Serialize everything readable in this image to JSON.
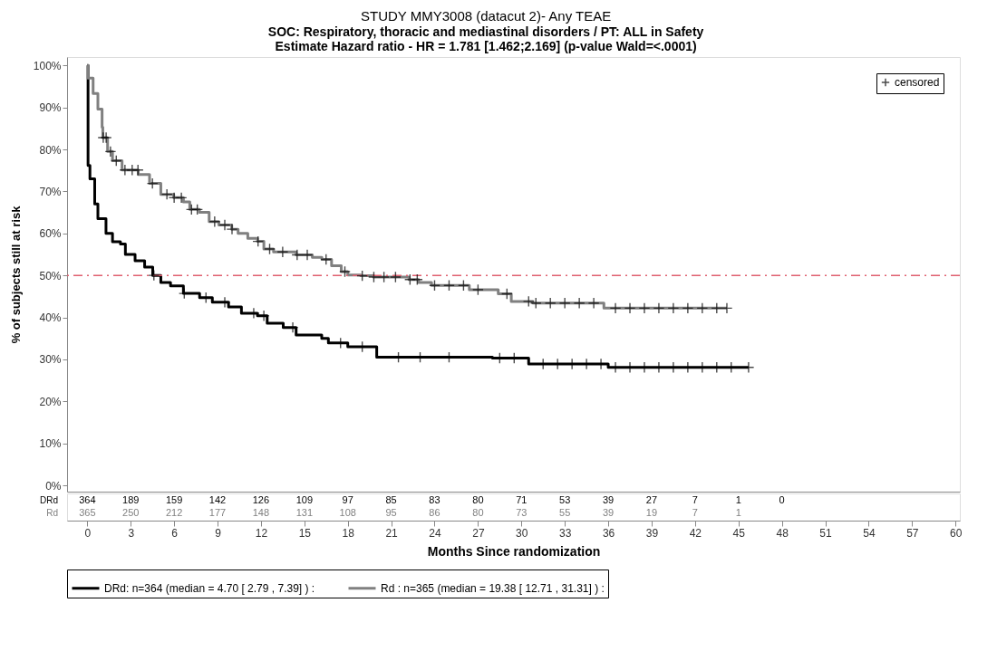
{
  "chart_data": {
    "type": "step",
    "title": "STUDY MMY3008 (datacut 2)- Any TEAE",
    "subtitle": "SOC: Respiratory, thoracic and mediastinal disorders / PT: ALL  in Safety\nEstimate Hazard ratio -  HR = 1.781 [1.462;2.169] (p-value Wald=<.0001)",
    "xlabel": "Months Since randomization",
    "ylabel": "% of subjects still at risk",
    "xlim": [
      -1.4,
      60.3
    ],
    "ylim": [
      -1.5,
      102
    ],
    "xticks": [
      0,
      3,
      6,
      9,
      12,
      15,
      18,
      21,
      24,
      27,
      30,
      33,
      36,
      39,
      42,
      45,
      48,
      51,
      54,
      57,
      60
    ],
    "yticks": [
      {
        "value": 0,
        "label": "0%"
      },
      {
        "value": 10,
        "label": "10%"
      },
      {
        "value": 20,
        "label": "20%"
      },
      {
        "value": 30,
        "label": "30%"
      },
      {
        "value": 40,
        "label": "40%"
      },
      {
        "value": 50,
        "label": "50%"
      },
      {
        "value": 60,
        "label": "60%"
      },
      {
        "value": 70,
        "label": "70%"
      },
      {
        "value": 80,
        "label": "80%"
      },
      {
        "value": 90,
        "label": "90%"
      },
      {
        "value": 100,
        "label": "100%"
      }
    ],
    "grid": false,
    "legend": "bottom",
    "series": [
      {
        "name": "DRd: n=364 (median = 4.70 [  2.79 ,  7.39]  ) :",
        "color": "#000000",
        "x": [
          0,
          0.05,
          0.18,
          0.51,
          0.73,
          1.29,
          1.74,
          2.29,
          2.63,
          3.3,
          3.96,
          4.52,
          5.08,
          5.75,
          6.64,
          7.76,
          8.64,
          9.76,
          10.65,
          11.76,
          12.43,
          13.54,
          14.43,
          16.2,
          16.66,
          18.0,
          20.0,
          28.0,
          30.5,
          36.0,
          45.7
        ],
        "values": [
          100,
          76.2,
          73,
          67,
          63.5,
          60,
          58,
          57.5,
          55,
          53.5,
          52,
          50,
          48.3,
          47.5,
          45.7,
          44.7,
          43.6,
          42.5,
          41,
          40.4,
          38.6,
          37.6,
          35.8,
          35,
          33.9,
          33,
          30.5,
          30.3,
          28.9,
          28.1,
          28.1
        ]
      },
      {
        "name": "Rd : n=365 (median = 19.38 [ 12.71 , 31.31] ) :",
        "color": "#808080",
        "x": [
          0,
          0.05,
          0.4,
          0.73,
          1.02,
          1.07,
          1.4,
          1.74,
          2.4,
          3.52,
          4.3,
          5.08,
          5.97,
          6.64,
          7.08,
          7.75,
          8.42,
          9.09,
          9.98,
          10.42,
          11.09,
          11.76,
          12.2,
          12.87,
          14.43,
          15.55,
          16.21,
          16.88,
          17.55,
          18.0,
          18.89,
          19.78,
          21.56,
          22.23,
          22.9,
          23.79,
          26.4,
          28.4,
          29.3,
          30.8,
          35.7,
          44.2
        ],
        "values": [
          100,
          97,
          93.3,
          89.6,
          85.3,
          82.8,
          79.5,
          77.3,
          75.1,
          74,
          71.9,
          69.3,
          68.5,
          67.5,
          65.7,
          65,
          62.8,
          62,
          61,
          60,
          58.8,
          58.1,
          56.3,
          55.6,
          54.9,
          54.3,
          53.8,
          52.3,
          50.9,
          50.1,
          49.9,
          49.6,
          49.6,
          49,
          48.3,
          47.6,
          46.6,
          45.6,
          43.8,
          43.4,
          42.2,
          42.2
        ]
      },
      {
        "name": "censored",
        "color": "#000000",
        "type": "scatter",
        "marker": "cross",
        "x": [
          1.1,
          1.3,
          1.6,
          2.0,
          2.6,
          3.1,
          3.5,
          4.5,
          5.5,
          6.0,
          6.5,
          7.2,
          7.6,
          8.8,
          9.5,
          10.0,
          11.8,
          12.6,
          13.5,
          14.5,
          15.2,
          16.5,
          17.8,
          19.0,
          19.8,
          20.5,
          21.3,
          22.3,
          22.8,
          24.0,
          25.0,
          26.0,
          27.0,
          29.0,
          30.5,
          31.0,
          32.0,
          33.0,
          34.0,
          35.0,
          36.5,
          37.5,
          38.5,
          39.5,
          40.5,
          41.5,
          42.5,
          43.5,
          44.2,
          4.6,
          6.7,
          8.2,
          9.5,
          11.5,
          12.2,
          14.2,
          17.5,
          19.0,
          21.5,
          23.0,
          25.0,
          28.5,
          29.5,
          31.5,
          32.5,
          33.5,
          34.5,
          35.5,
          36.5,
          37.5,
          38.5,
          39.5,
          40.5,
          41.5,
          42.5,
          43.5,
          44.5,
          45.7
        ],
        "values": [
          82.8,
          82.8,
          79.5,
          77.3,
          75.1,
          75.1,
          75.1,
          71.9,
          69.3,
          68.5,
          68.5,
          65.7,
          65.7,
          62.8,
          62,
          61,
          58.1,
          56.3,
          55.6,
          54.9,
          54.9,
          53.8,
          50.9,
          49.9,
          49.6,
          49.6,
          49.6,
          49,
          49,
          47.6,
          47.6,
          47.6,
          46.6,
          45.6,
          43.8,
          43.4,
          43.4,
          43.4,
          43.4,
          43.4,
          42.2,
          42.2,
          42.2,
          42.2,
          42.2,
          42.2,
          42.2,
          42.2,
          42.2,
          50,
          45.7,
          44.7,
          43.6,
          41,
          40.4,
          37.6,
          33.9,
          33,
          30.5,
          30.5,
          30.5,
          30.3,
          30.3,
          28.9,
          28.9,
          28.9,
          28.9,
          28.9,
          28.1,
          28.1,
          28.1,
          28.1,
          28.1,
          28.1,
          28.1,
          28.1,
          28.1,
          28.1
        ]
      }
    ],
    "ref_lines": [
      {
        "axis": "y",
        "value": 50,
        "color": "#e06070",
        "line_style": "dashdot"
      }
    ],
    "annotations": [
      "DRd",
      "364",
      "189",
      "159",
      "142",
      "126",
      "109",
      "97",
      "85",
      "83",
      "80",
      "71",
      "53",
      "39",
      "27",
      "7",
      "1",
      "0",
      "Rd",
      "365",
      "250",
      "212",
      "177",
      "148",
      "131",
      "108",
      "95",
      "86",
      "80",
      "73",
      "55",
      "39",
      "19",
      "7",
      "1"
    ]
  }
}
